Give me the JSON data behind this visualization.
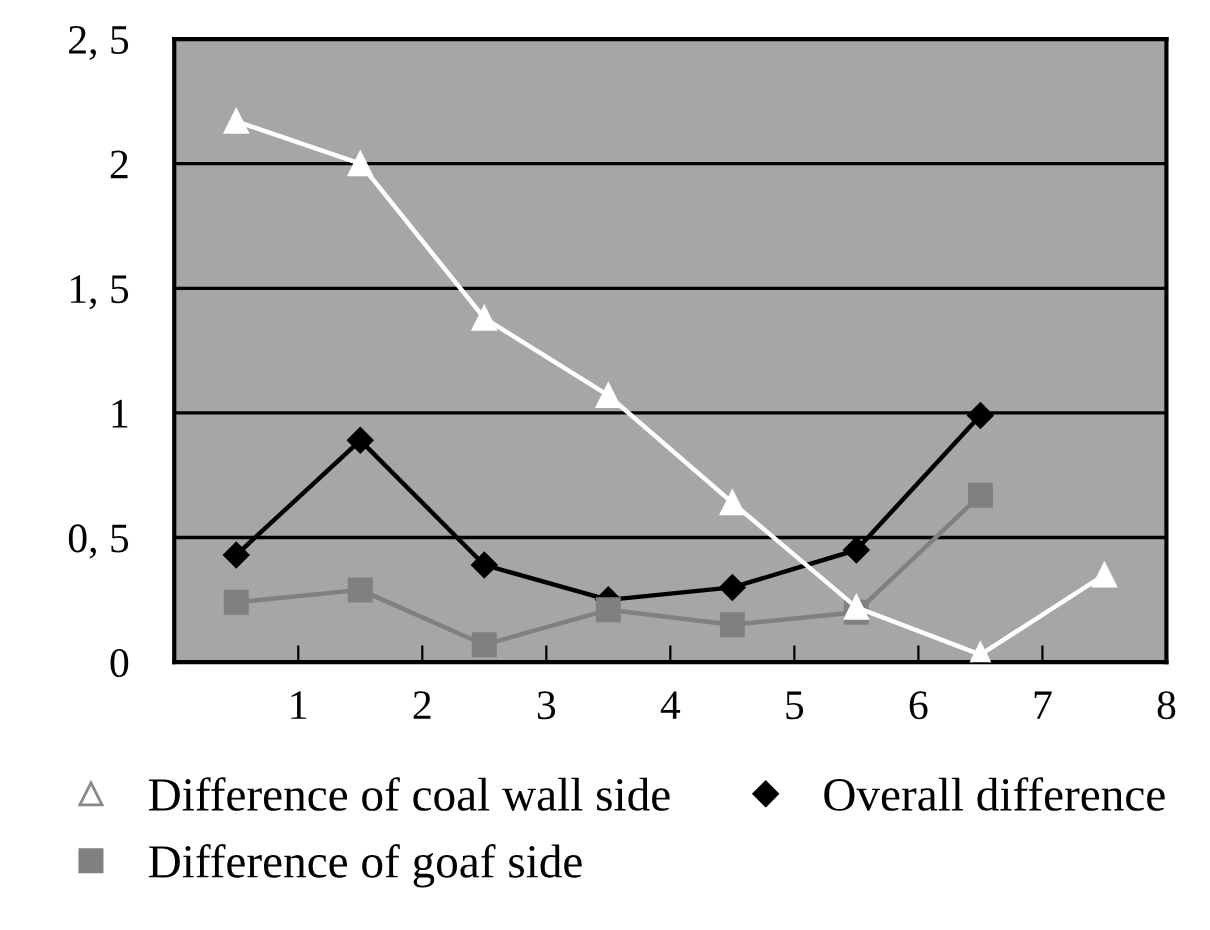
{
  "chart_data": {
    "type": "line",
    "x": [
      0.5,
      1.5,
      2.5,
      3.5,
      4.5,
      5.5,
      6.5,
      7.5
    ],
    "series": [
      {
        "name": "Difference of coal wall side",
        "color": "#ffffff",
        "marker": "triangle",
        "values": [
          2.17,
          2.0,
          1.38,
          1.07,
          0.64,
          0.22,
          0.03,
          0.35
        ]
      },
      {
        "name": "Difference of goaf side",
        "color": "#808080",
        "marker": "square",
        "values": [
          0.24,
          0.29,
          0.07,
          0.21,
          0.15,
          0.2,
          0.67,
          null
        ]
      },
      {
        "name": "Overall difference",
        "color": "#000000",
        "marker": "diamond",
        "values": [
          0.43,
          0.89,
          0.39,
          0.25,
          0.3,
          0.45,
          0.99,
          null
        ]
      }
    ],
    "xlim": [
      0,
      8
    ],
    "xticks": [
      1,
      2,
      3,
      4,
      5,
      6,
      7,
      8
    ],
    "ylim": [
      0,
      2.5
    ],
    "yticks": [
      0,
      {
        "value": 0.5,
        "label": "0, 5"
      },
      1,
      {
        "value": 1.5,
        "label": "1, 5"
      },
      2,
      {
        "value": 2.5,
        "label": "2, 5"
      }
    ],
    "grid": "y",
    "legend": "bottom",
    "line_style": "solid"
  }
}
